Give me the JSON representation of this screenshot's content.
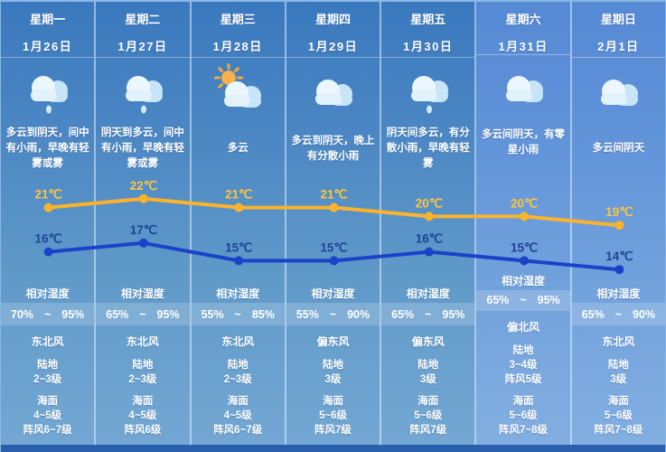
{
  "labels": {
    "humidity": "相对湿度",
    "tilde": "~",
    "land": "陆地",
    "sea": "海面"
  },
  "columns": [
    {
      "weekday": "星期一",
      "date": "1月26日",
      "icon": "cloud-rain",
      "desc": "多云到阴天，间中有小雨，早晚有轻雾或雾",
      "humidity_low": "70%",
      "humidity_high": "95%",
      "wind_dir": "东北风",
      "land": [
        "2~3级"
      ],
      "sea": [
        "4~5级",
        "阵风6~7级"
      ],
      "weekend": false
    },
    {
      "weekday": "星期二",
      "date": "1月27日",
      "icon": "cloud-rain",
      "desc": "阴天到多云，间中有小雨，早晚有轻雾或雾",
      "humidity_low": "65%",
      "humidity_high": "95%",
      "wind_dir": "东北风",
      "land": [
        "2~3级"
      ],
      "sea": [
        "4~5级",
        "阵风6级"
      ],
      "weekend": false
    },
    {
      "weekday": "星期三",
      "date": "1月28日",
      "icon": "sun-cloud",
      "desc": "多云",
      "humidity_low": "55%",
      "humidity_high": "85%",
      "wind_dir": "东北风",
      "land": [
        "2~3级"
      ],
      "sea": [
        "4~5级",
        "阵风6~7级"
      ],
      "weekend": false
    },
    {
      "weekday": "星期四",
      "date": "1月29日",
      "icon": "cloud",
      "desc": "多云到阴天，晚上有分散小雨",
      "humidity_low": "55%",
      "humidity_high": "90%",
      "wind_dir": "偏东风",
      "land": [
        "3级"
      ],
      "sea": [
        "5~6级",
        "阵风7级"
      ],
      "weekend": false
    },
    {
      "weekday": "星期五",
      "date": "1月30日",
      "icon": "cloud-rain",
      "desc": "阴天间多云，有分散小雨，早晚有轻雾",
      "humidity_low": "65%",
      "humidity_high": "95%",
      "wind_dir": "偏东风",
      "land": [
        "3级"
      ],
      "sea": [
        "5~6级",
        "阵风7级"
      ],
      "weekend": false
    },
    {
      "weekday": "星期六",
      "date": "1月31日",
      "icon": "cloud",
      "desc": "多云间阴天，有零星小雨",
      "humidity_low": "65%",
      "humidity_high": "95%",
      "wind_dir": "偏北风",
      "land": [
        "3~4级",
        "阵风5级"
      ],
      "sea": [
        "5~6级",
        "阵风7~8级"
      ],
      "weekend": true
    },
    {
      "weekday": "星期日",
      "date": "2月1日",
      "icon": "cloud",
      "desc": "多云间阴天",
      "humidity_low": "65%",
      "humidity_high": "90%",
      "wind_dir": "东北风",
      "land": [
        "3级"
      ],
      "sea": [
        "5~6级",
        "阵风7~8级"
      ],
      "weekend": true
    }
  ],
  "chart_data": {
    "type": "line",
    "categories": [
      "1月26日",
      "1月27日",
      "1月28日",
      "1月29日",
      "1月30日",
      "1月31日",
      "2月1日"
    ],
    "series": [
      {
        "name": "high",
        "values": [
          21,
          22,
          21,
          21,
          20,
          20,
          19
        ],
        "color": "#fcb32c",
        "label_color": "#ffc53d"
      },
      {
        "name": "low",
        "values": [
          16,
          17,
          15,
          15,
          16,
          15,
          14
        ],
        "color": "#1a43c8",
        "label_color": "#1e4496"
      }
    ],
    "unit": "℃",
    "ylim": [
      13,
      23
    ],
    "grid": false,
    "legend": "none"
  },
  "colors": {
    "weekday_column": "#4c87c4",
    "weekend_column": "#6193d9",
    "footer_bar": "#2a60ab",
    "divider": "#cfe6f7",
    "high_temp": "#fcb32c",
    "low_temp": "#1a43c8"
  }
}
